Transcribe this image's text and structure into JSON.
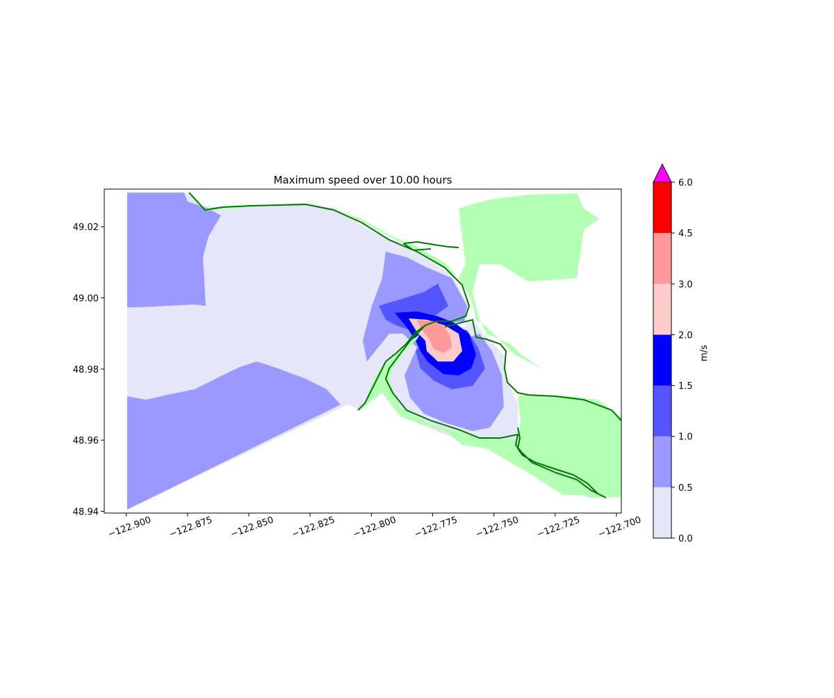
{
  "chart_data": {
    "type": "heatmap",
    "title": "Maximum speed over 10.00 hours",
    "xlabel": "",
    "ylabel": "",
    "xlim": [
      -122.909,
      -122.698
    ],
    "ylim": [
      48.9395,
      49.0306
    ],
    "x_ticks": [
      -122.9,
      -122.875,
      -122.85,
      -122.825,
      -122.8,
      -122.775,
      -122.75,
      -122.725,
      -122.7
    ],
    "x_tick_labels": [
      "−122.900",
      "−122.875",
      "−122.850",
      "−122.825",
      "−122.800",
      "−122.775",
      "−122.750",
      "−122.725",
      "−122.700"
    ],
    "y_ticks": [
      48.94,
      48.96,
      48.98,
      49.0,
      49.02
    ],
    "y_tick_labels": [
      "48.94",
      "48.96",
      "48.98",
      "49.00",
      "49.02"
    ],
    "grid": false,
    "colorbar": {
      "label": "m/s",
      "levels": [
        0.0,
        0.5,
        1.0,
        1.5,
        2.0,
        3.0,
        4.5,
        6.0
      ],
      "tick_labels": [
        "0.0",
        "0.5",
        "1.0",
        "1.5",
        "2.0",
        "3.0",
        "4.5",
        "6.0"
      ],
      "colors": [
        "#e6e6fa",
        "#9999ff",
        "#5555ff",
        "#0000ff",
        "#ffcccc",
        "#ff9999",
        "#ff0000"
      ],
      "extend_color": "#ff00ff",
      "extend": "max"
    },
    "land_color": "#b3ffb3",
    "shoreline_color": "#007700"
  }
}
